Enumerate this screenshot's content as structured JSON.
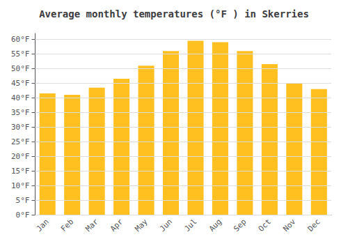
{
  "chart_data": {
    "type": "bar",
    "title": "Average monthly temperatures (°F ) in Skerries",
    "categories": [
      "Jan",
      "Feb",
      "Mar",
      "Apr",
      "May",
      "Jun",
      "Jul",
      "Aug",
      "Sep",
      "Oct",
      "Nov",
      "Dec"
    ],
    "values": [
      41.5,
      41.0,
      43.5,
      46.5,
      51.0,
      56.0,
      59.5,
      59.0,
      56.0,
      51.5,
      45.0,
      43.0
    ],
    "color": "#FFC020",
    "ylim": [
      0,
      62
    ],
    "yticks": [
      {
        "value": 0,
        "label": "0°F"
      },
      {
        "value": 5,
        "label": "5°F"
      },
      {
        "value": 10,
        "label": "10°F"
      },
      {
        "value": 15,
        "label": "15°F"
      },
      {
        "value": 20,
        "label": "20°F"
      },
      {
        "value": 25,
        "label": "25°F"
      },
      {
        "value": 30,
        "label": "30°F"
      },
      {
        "value": 35,
        "label": "35°F"
      },
      {
        "value": 40,
        "label": "40°F"
      },
      {
        "value": 45,
        "label": "45°F"
      },
      {
        "value": 50,
        "label": "50°F"
      },
      {
        "value": 55,
        "label": "55°F"
      },
      {
        "value": 60,
        "label": "60°F"
      }
    ],
    "grid": true
  }
}
